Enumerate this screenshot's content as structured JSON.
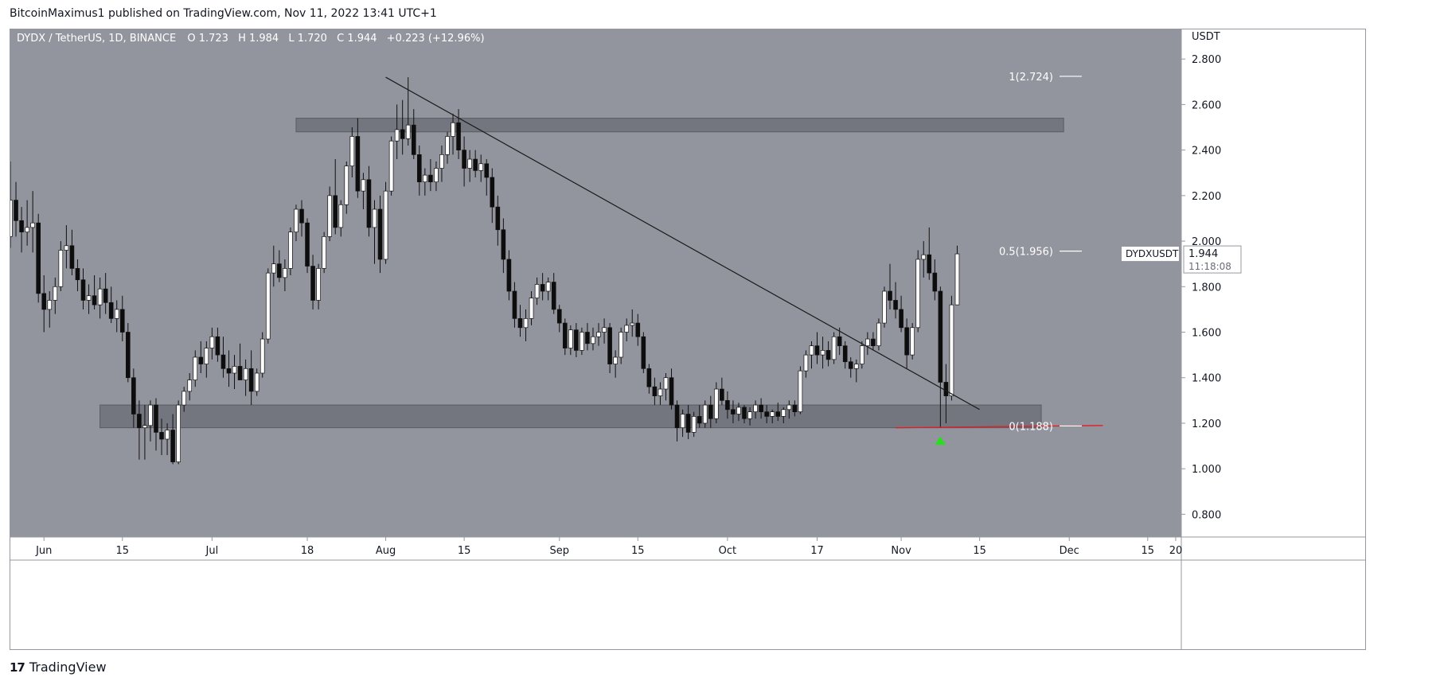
{
  "publisher_line": "BitcoinMaximus1 published on TradingView.com, Nov 11, 2022 13:41 UTC+1",
  "footer": {
    "logo_mark": "17",
    "logo_text": "TradingView"
  },
  "colors": {
    "plot_bg": "#93959e",
    "candle_up": "#ffffff",
    "candle_down": "#0d0d0d",
    "zone": "#6a6c74",
    "trendline": "#1a1a1a",
    "support_line": "#e01e24",
    "arrow": "#26e01a",
    "fib_line": "#ffffff"
  },
  "chart_data": {
    "type": "candlestick",
    "symbol_header": {
      "pair": "DYDX / TetherUS, 1D, BINANCE",
      "o_label": "O",
      "o_value": "1.723",
      "h_label": "H",
      "h_value": "1.984",
      "l_label": "L",
      "l_value": "1.720",
      "c_label": "C",
      "c_value": "1.944",
      "change": "+0.223 (+12.96%)"
    },
    "y_axis": {
      "unit": "USDT",
      "ticks": [
        "2.800",
        "2.600",
        "2.400",
        "2.200",
        "2.000",
        "1.800",
        "1.600",
        "1.400",
        "1.200",
        "1.000",
        "0.800"
      ],
      "range": [
        0.7,
        2.93
      ]
    },
    "x_axis": {
      "ticks": [
        {
          "label": "Jun",
          "date": "2022-06-01"
        },
        {
          "label": "15",
          "date": "2022-06-15"
        },
        {
          "label": "Jul",
          "date": "2022-07-01"
        },
        {
          "label": "18",
          "date": "2022-07-18"
        },
        {
          "label": "Aug",
          "date": "2022-08-01"
        },
        {
          "label": "15",
          "date": "2022-08-15"
        },
        {
          "label": "Sep",
          "date": "2022-09-01"
        },
        {
          "label": "15",
          "date": "2022-09-15"
        },
        {
          "label": "Oct",
          "date": "2022-10-01"
        },
        {
          "label": "17",
          "date": "2022-10-17"
        },
        {
          "label": "Nov",
          "date": "2022-11-01"
        },
        {
          "label": "15",
          "date": "2022-11-15"
        },
        {
          "label": "Dec",
          "date": "2022-12-01"
        },
        {
          "label": "15",
          "date": "2022-12-15"
        },
        {
          "label": "20",
          "date": "2022-12-20"
        }
      ],
      "range": [
        "2022-05-26",
        "2022-12-21"
      ]
    },
    "price_label": {
      "symbol": "DYDXUSDT",
      "price": "1.944",
      "countdown": "11:18:08"
    },
    "fib_levels": [
      {
        "label": "1(2.724)",
        "value": 2.724
      },
      {
        "label": "0.5(1.956)",
        "value": 1.956
      },
      {
        "label": "0(1.188)",
        "value": 1.188
      }
    ],
    "zones": [
      {
        "name": "resistance",
        "from": "2022-07-16",
        "to": "2022-11-30",
        "low": 2.48,
        "high": 2.54
      },
      {
        "name": "support",
        "from": "2022-06-11",
        "to": "2022-11-26",
        "low": 1.18,
        "high": 1.28
      }
    ],
    "trendline": {
      "from": {
        "date": "2022-08-01",
        "price": 2.72
      },
      "to": {
        "date": "2022-11-15",
        "price": 1.26
      }
    },
    "support_line": {
      "from": {
        "date": "2022-10-31",
        "price": 1.18
      },
      "to": {
        "date": "2022-12-07",
        "price": 1.19
      }
    },
    "arrow": {
      "date": "2022-11-08",
      "price": 1.12
    },
    "candles": [
      [
        1.93,
        2.1,
        1.88,
        2.02
      ],
      [
        2.02,
        2.35,
        1.97,
        2.18
      ],
      [
        2.18,
        2.26,
        2.02,
        2.09
      ],
      [
        2.09,
        2.15,
        1.95,
        2.04
      ],
      [
        2.04,
        2.18,
        1.98,
        2.06
      ],
      [
        2.06,
        2.22,
        1.95,
        2.08
      ],
      [
        2.08,
        2.12,
        1.73,
        1.77
      ],
      [
        1.77,
        1.85,
        1.6,
        1.7
      ],
      [
        1.7,
        1.78,
        1.62,
        1.74
      ],
      [
        1.74,
        1.84,
        1.68,
        1.8
      ],
      [
        1.8,
        2.0,
        1.78,
        1.96
      ],
      [
        1.96,
        2.07,
        1.88,
        1.98
      ],
      [
        1.98,
        2.05,
        1.85,
        1.88
      ],
      [
        1.88,
        1.92,
        1.78,
        1.83
      ],
      [
        1.83,
        1.88,
        1.7,
        1.74
      ],
      [
        1.74,
        1.81,
        1.68,
        1.76
      ],
      [
        1.76,
        1.85,
        1.7,
        1.72
      ],
      [
        1.72,
        1.84,
        1.66,
        1.79
      ],
      [
        1.79,
        1.86,
        1.68,
        1.73
      ],
      [
        1.73,
        1.8,
        1.64,
        1.66
      ],
      [
        1.66,
        1.74,
        1.6,
        1.7
      ],
      [
        1.7,
        1.76,
        1.56,
        1.6
      ],
      [
        1.6,
        1.64,
        1.38,
        1.4
      ],
      [
        1.4,
        1.44,
        1.18,
        1.24
      ],
      [
        1.24,
        1.3,
        1.04,
        1.18
      ],
      [
        1.18,
        1.28,
        1.04,
        1.19
      ],
      [
        1.19,
        1.3,
        1.12,
        1.28
      ],
      [
        1.28,
        1.31,
        1.08,
        1.16
      ],
      [
        1.16,
        1.22,
        1.06,
        1.13
      ],
      [
        1.13,
        1.2,
        1.06,
        1.17
      ],
      [
        1.17,
        1.24,
        1.02,
        1.03
      ],
      [
        1.03,
        1.3,
        1.02,
        1.28
      ],
      [
        1.28,
        1.36,
        1.25,
        1.34
      ],
      [
        1.34,
        1.42,
        1.3,
        1.39
      ],
      [
        1.39,
        1.52,
        1.36,
        1.49
      ],
      [
        1.49,
        1.56,
        1.42,
        1.46
      ],
      [
        1.46,
        1.56,
        1.4,
        1.53
      ],
      [
        1.53,
        1.62,
        1.48,
        1.58
      ],
      [
        1.58,
        1.62,
        1.47,
        1.5
      ],
      [
        1.5,
        1.58,
        1.4,
        1.44
      ],
      [
        1.44,
        1.52,
        1.36,
        1.42
      ],
      [
        1.42,
        1.5,
        1.35,
        1.45
      ],
      [
        1.45,
        1.55,
        1.4,
        1.39
      ],
      [
        1.39,
        1.48,
        1.32,
        1.44
      ],
      [
        1.44,
        1.52,
        1.28,
        1.34
      ],
      [
        1.34,
        1.44,
        1.32,
        1.42
      ],
      [
        1.42,
        1.6,
        1.4,
        1.57
      ],
      [
        1.57,
        1.88,
        1.55,
        1.86
      ],
      [
        1.86,
        1.98,
        1.8,
        1.9
      ],
      [
        1.9,
        1.96,
        1.82,
        1.84
      ],
      [
        1.84,
        1.92,
        1.78,
        1.88
      ],
      [
        1.88,
        2.06,
        1.85,
        2.04
      ],
      [
        2.04,
        2.16,
        2.0,
        2.14
      ],
      [
        2.14,
        2.18,
        2.02,
        2.08
      ],
      [
        2.08,
        2.1,
        1.86,
        1.89
      ],
      [
        1.89,
        1.94,
        1.7,
        1.74
      ],
      [
        1.74,
        1.9,
        1.7,
        1.88
      ],
      [
        1.88,
        2.04,
        1.86,
        2.02
      ],
      [
        2.02,
        2.24,
        2.0,
        2.2
      ],
      [
        2.2,
        2.36,
        2.03,
        2.06
      ],
      [
        2.06,
        2.18,
        2.02,
        2.16
      ],
      [
        2.16,
        2.35,
        2.12,
        2.33
      ],
      [
        2.33,
        2.5,
        2.28,
        2.46
      ],
      [
        2.46,
        2.54,
        2.19,
        2.22
      ],
      [
        2.22,
        2.3,
        2.14,
        2.27
      ],
      [
        2.27,
        2.33,
        2.02,
        2.06
      ],
      [
        2.06,
        2.18,
        1.9,
        2.14
      ],
      [
        2.14,
        2.2,
        1.86,
        1.92
      ],
      [
        1.92,
        2.26,
        1.9,
        2.22
      ],
      [
        2.22,
        2.46,
        2.2,
        2.44
      ],
      [
        2.44,
        2.6,
        2.36,
        2.49
      ],
      [
        2.49,
        2.62,
        2.38,
        2.45
      ],
      [
        2.45,
        2.72,
        2.42,
        2.51
      ],
      [
        2.51,
        2.58,
        2.36,
        2.38
      ],
      [
        2.38,
        2.42,
        2.2,
        2.26
      ],
      [
        2.26,
        2.32,
        2.2,
        2.29
      ],
      [
        2.29,
        2.36,
        2.22,
        2.26
      ],
      [
        2.26,
        2.35,
        2.22,
        2.32
      ],
      [
        2.32,
        2.42,
        2.26,
        2.38
      ],
      [
        2.38,
        2.48,
        2.34,
        2.46
      ],
      [
        2.46,
        2.56,
        2.38,
        2.52
      ],
      [
        2.52,
        2.58,
        2.36,
        2.4
      ],
      [
        2.4,
        2.46,
        2.24,
        2.32
      ],
      [
        2.32,
        2.4,
        2.26,
        2.36
      ],
      [
        2.36,
        2.4,
        2.28,
        2.31
      ],
      [
        2.31,
        2.38,
        2.26,
        2.34
      ],
      [
        2.34,
        2.36,
        2.2,
        2.28
      ],
      [
        2.28,
        2.32,
        2.08,
        2.15
      ],
      [
        2.15,
        2.2,
        1.98,
        2.05
      ],
      [
        2.05,
        2.1,
        1.86,
        1.92
      ],
      [
        1.92,
        1.96,
        1.74,
        1.78
      ],
      [
        1.78,
        1.82,
        1.62,
        1.66
      ],
      [
        1.66,
        1.72,
        1.58,
        1.62
      ],
      [
        1.62,
        1.7,
        1.56,
        1.66
      ],
      [
        1.66,
        1.78,
        1.63,
        1.75
      ],
      [
        1.75,
        1.84,
        1.72,
        1.81
      ],
      [
        1.81,
        1.86,
        1.74,
        1.78
      ],
      [
        1.78,
        1.84,
        1.74,
        1.82
      ],
      [
        1.82,
        1.86,
        1.68,
        1.7
      ],
      [
        1.7,
        1.72,
        1.6,
        1.64
      ],
      [
        1.64,
        1.66,
        1.5,
        1.53
      ],
      [
        1.53,
        1.63,
        1.5,
        1.61
      ],
      [
        1.61,
        1.64,
        1.49,
        1.52
      ],
      [
        1.52,
        1.62,
        1.5,
        1.6
      ],
      [
        1.6,
        1.64,
        1.52,
        1.55
      ],
      [
        1.55,
        1.62,
        1.52,
        1.58
      ],
      [
        1.58,
        1.64,
        1.54,
        1.6
      ],
      [
        1.6,
        1.66,
        1.55,
        1.62
      ],
      [
        1.62,
        1.64,
        1.42,
        1.46
      ],
      [
        1.46,
        1.52,
        1.4,
        1.49
      ],
      [
        1.49,
        1.62,
        1.46,
        1.6
      ],
      [
        1.6,
        1.66,
        1.56,
        1.63
      ],
      [
        1.63,
        1.7,
        1.58,
        1.64
      ],
      [
        1.64,
        1.68,
        1.54,
        1.58
      ],
      [
        1.58,
        1.6,
        1.42,
        1.44
      ],
      [
        1.44,
        1.46,
        1.33,
        1.36
      ],
      [
        1.36,
        1.4,
        1.28,
        1.32
      ],
      [
        1.32,
        1.38,
        1.28,
        1.35
      ],
      [
        1.35,
        1.42,
        1.3,
        1.4
      ],
      [
        1.4,
        1.44,
        1.26,
        1.28
      ],
      [
        1.28,
        1.3,
        1.12,
        1.18
      ],
      [
        1.18,
        1.26,
        1.14,
        1.24
      ],
      [
        1.24,
        1.28,
        1.13,
        1.16
      ],
      [
        1.16,
        1.25,
        1.14,
        1.23
      ],
      [
        1.23,
        1.28,
        1.18,
        1.2
      ],
      [
        1.2,
        1.3,
        1.18,
        1.28
      ],
      [
        1.28,
        1.32,
        1.18,
        1.22
      ],
      [
        1.22,
        1.38,
        1.2,
        1.35
      ],
      [
        1.35,
        1.4,
        1.28,
        1.3
      ],
      [
        1.3,
        1.34,
        1.22,
        1.26
      ],
      [
        1.26,
        1.3,
        1.2,
        1.24
      ],
      [
        1.24,
        1.29,
        1.21,
        1.27
      ],
      [
        1.27,
        1.28,
        1.2,
        1.22
      ],
      [
        1.22,
        1.27,
        1.19,
        1.25
      ],
      [
        1.25,
        1.3,
        1.22,
        1.28
      ],
      [
        1.28,
        1.31,
        1.22,
        1.25
      ],
      [
        1.25,
        1.28,
        1.2,
        1.23
      ],
      [
        1.23,
        1.26,
        1.2,
        1.25
      ],
      [
        1.25,
        1.29,
        1.21,
        1.23
      ],
      [
        1.23,
        1.27,
        1.2,
        1.26
      ],
      [
        1.26,
        1.3,
        1.22,
        1.28
      ],
      [
        1.28,
        1.3,
        1.23,
        1.25
      ],
      [
        1.25,
        1.45,
        1.24,
        1.43
      ],
      [
        1.43,
        1.52,
        1.4,
        1.5
      ],
      [
        1.5,
        1.56,
        1.44,
        1.54
      ],
      [
        1.54,
        1.6,
        1.46,
        1.5
      ],
      [
        1.5,
        1.58,
        1.44,
        1.52
      ],
      [
        1.52,
        1.56,
        1.45,
        1.48
      ],
      [
        1.48,
        1.6,
        1.46,
        1.58
      ],
      [
        1.58,
        1.62,
        1.5,
        1.54
      ],
      [
        1.54,
        1.56,
        1.44,
        1.47
      ],
      [
        1.47,
        1.49,
        1.4,
        1.44
      ],
      [
        1.44,
        1.48,
        1.38,
        1.46
      ],
      [
        1.46,
        1.56,
        1.44,
        1.54
      ],
      [
        1.54,
        1.6,
        1.5,
        1.57
      ],
      [
        1.57,
        1.6,
        1.52,
        1.54
      ],
      [
        1.54,
        1.66,
        1.52,
        1.64
      ],
      [
        1.64,
        1.8,
        1.62,
        1.78
      ],
      [
        1.78,
        1.9,
        1.7,
        1.74
      ],
      [
        1.74,
        1.82,
        1.66,
        1.7
      ],
      [
        1.7,
        1.76,
        1.6,
        1.62
      ],
      [
        1.62,
        1.66,
        1.44,
        1.5
      ],
      [
        1.5,
        1.64,
        1.48,
        1.62
      ],
      [
        1.62,
        1.96,
        1.6,
        1.92
      ],
      [
        1.92,
        2.0,
        1.84,
        1.94
      ],
      [
        1.94,
        2.06,
        1.83,
        1.86
      ],
      [
        1.86,
        1.92,
        1.74,
        1.78
      ],
      [
        1.78,
        1.8,
        1.18,
        1.38
      ],
      [
        1.38,
        1.46,
        1.2,
        1.32
      ],
      [
        1.32,
        1.76,
        1.3,
        1.72
      ],
      [
        1.72,
        1.98,
        1.72,
        1.944
      ]
    ]
  }
}
